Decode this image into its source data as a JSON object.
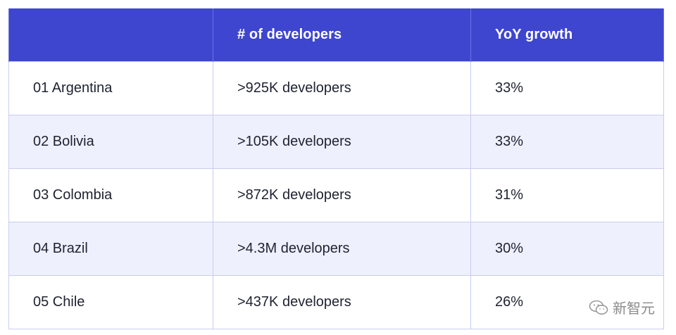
{
  "table": {
    "headers": [
      "",
      "# of developers",
      "YoY growth"
    ],
    "rows": [
      {
        "country": "01 Argentina",
        "developers": ">925K developers",
        "growth": "33%"
      },
      {
        "country": "02 Bolivia",
        "developers": ">105K developers",
        "growth": "33%"
      },
      {
        "country": "03 Colombia",
        "developers": ">872K developers",
        "growth": "31%"
      },
      {
        "country": "04 Brazil",
        "developers": ">4.3M developers",
        "growth": "30%"
      },
      {
        "country": "05 Chile",
        "developers": ">437K developers",
        "growth": "26%"
      }
    ]
  },
  "colors": {
    "header_bg": "#3e46cf",
    "alt_row_bg": "#eef0fd",
    "border": "#c9ccf3"
  },
  "watermark": {
    "text": "新智元",
    "icon": "wechat-icon"
  }
}
